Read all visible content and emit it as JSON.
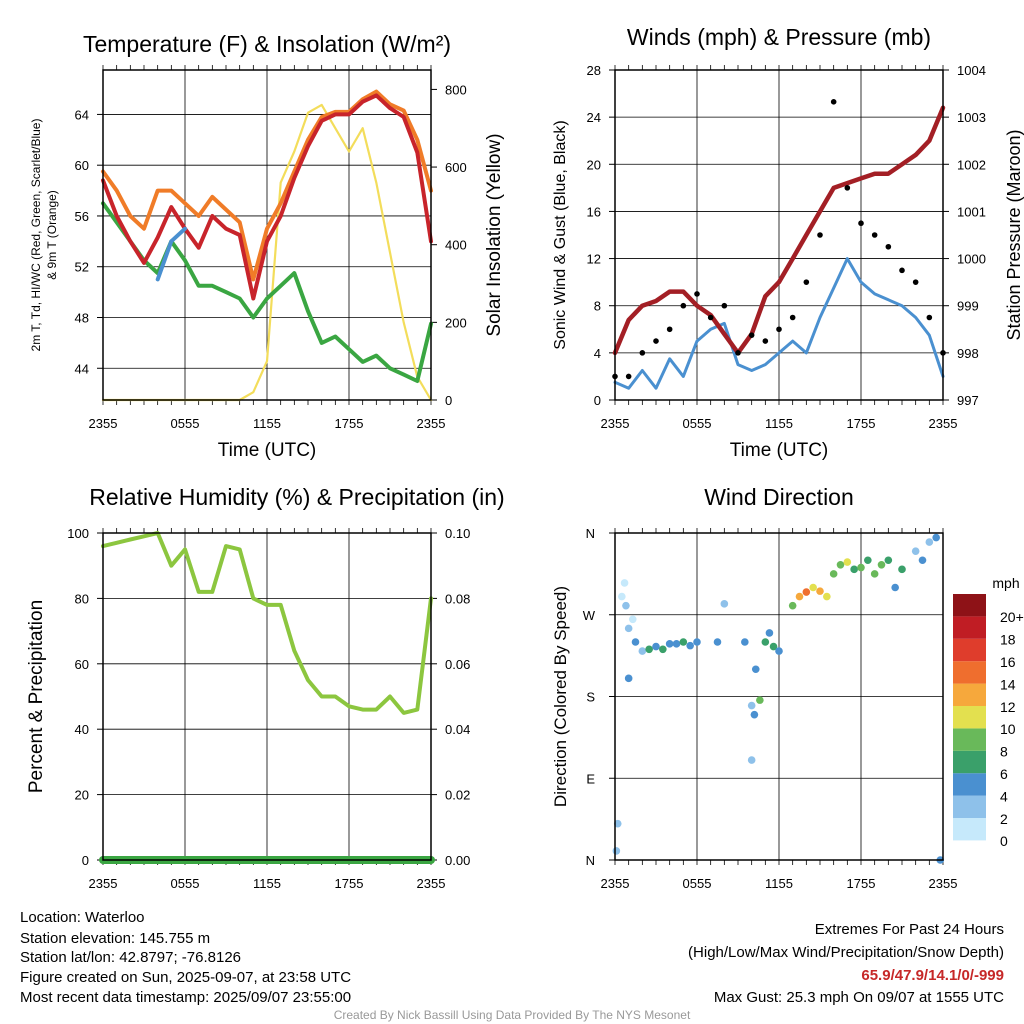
{
  "chart_data": [
    {
      "type": "line",
      "title": "Temperature (F) & Insolation (W/m²)",
      "xlabel": "Time (UTC)",
      "ylabel_left": "2m T, Td, HI/WC (Red, Green, Scarlet/Blue)",
      "ylabel_left_line2": "& 9m T (Orange)",
      "ylabel_right": "Solar Insolation (Yellow)",
      "x_ticks": [
        "2355",
        "0555",
        "1155",
        "1755",
        "2355"
      ],
      "ylim_left": [
        41.5,
        67.5
      ],
      "y_ticks_left": [
        44,
        48,
        52,
        56,
        60,
        64
      ],
      "ylim_right": [
        0,
        850
      ],
      "y_ticks_right": [
        0,
        200,
        400,
        600,
        800
      ],
      "grid": true,
      "x_hours": [
        0,
        1,
        2,
        3,
        4,
        5,
        6,
        7,
        8,
        9,
        10,
        11,
        12,
        13,
        14,
        15,
        16,
        17,
        18,
        19,
        20,
        21,
        22,
        23,
        24
      ],
      "series": [
        {
          "name": "2m T",
          "color": "#c8242b",
          "axis": "left",
          "values": [
            58.8,
            56.0,
            54.0,
            52.3,
            54.3,
            56.7,
            55.0,
            53.5,
            56.0,
            55.0,
            54.5,
            49.5,
            54.0,
            56.0,
            59.0,
            61.5,
            63.5,
            64.0,
            64.0,
            65.0,
            65.5,
            64.5,
            63.8,
            61.0,
            54.0
          ]
        },
        {
          "name": "9m T",
          "color": "#f07c28",
          "axis": "left",
          "values": [
            59.5,
            58.0,
            56.0,
            55.0,
            58.0,
            58.0,
            57.0,
            56.0,
            57.5,
            56.5,
            55.5,
            51.0,
            55.0,
            57.0,
            59.5,
            62.0,
            63.8,
            64.2,
            64.2,
            65.2,
            65.8,
            64.8,
            64.3,
            62.0,
            58.0
          ]
        },
        {
          "name": "HI/WC (Blue)",
          "color": "#4a90d0",
          "axis": "left",
          "x_start": 4,
          "x_end": 6,
          "values": [
            51.0,
            54.0,
            55.0
          ]
        },
        {
          "name": "Td",
          "color": "#3aa642",
          "axis": "left",
          "values": [
            57.0,
            55.5,
            54.0,
            52.5,
            51.5,
            54.0,
            52.5,
            50.5,
            50.5,
            50.0,
            49.5,
            48.0,
            49.5,
            50.5,
            51.5,
            48.5,
            46.0,
            46.5,
            45.5,
            44.5,
            45.0,
            44.0,
            43.5,
            43.0,
            47.5
          ]
        },
        {
          "name": "Solar Insolation",
          "color": "#f3dd5b",
          "axis": "right",
          "values": [
            0,
            0,
            0,
            0,
            0,
            0,
            0,
            0,
            0,
            0,
            0,
            20,
            100,
            560,
            640,
            740,
            760,
            700,
            640,
            700,
            560,
            380,
            200,
            60,
            0
          ]
        }
      ]
    },
    {
      "type": "line",
      "title": "Winds (mph) & Pressure (mb)",
      "xlabel": "Time (UTC)",
      "ylabel_left": "Sonic Wind & Gust (Blue, Black)",
      "ylabel_right": "Station Pressure (Maroon)",
      "x_ticks": [
        "2355",
        "0555",
        "1155",
        "1755",
        "2355"
      ],
      "ylim_left": [
        0,
        28
      ],
      "y_ticks_left": [
        0,
        4,
        8,
        12,
        16,
        20,
        24,
        28
      ],
      "ylim_right": [
        997,
        1004
      ],
      "y_ticks_right": [
        997,
        998,
        999,
        1000,
        1001,
        1002,
        1003,
        1004
      ],
      "grid": true,
      "x_hours": [
        0,
        1,
        2,
        3,
        4,
        5,
        6,
        7,
        8,
        9,
        10,
        11,
        12,
        13,
        14,
        15,
        16,
        17,
        18,
        19,
        20,
        21,
        22,
        23,
        24
      ],
      "series": [
        {
          "name": "Sonic Wind",
          "color": "#4a90d0",
          "axis": "left",
          "values": [
            1.5,
            1.0,
            2.5,
            1.0,
            3.5,
            2.0,
            5.0,
            6.0,
            6.5,
            3.0,
            2.5,
            3.0,
            4.0,
            5.0,
            4.0,
            7.0,
            9.5,
            12.0,
            10.0,
            9.0,
            8.5,
            8.0,
            7.0,
            5.5,
            2.0
          ]
        },
        {
          "name": "Gust",
          "color": "#000000",
          "axis": "left",
          "style": "points",
          "values": [
            2.0,
            2.0,
            4.0,
            5.0,
            6.0,
            8.0,
            9.0,
            7.0,
            8.0,
            4.0,
            5.5,
            5.0,
            6.0,
            7.0,
            10.0,
            14.0,
            25.3,
            18.0,
            15.0,
            14.0,
            13.0,
            11.0,
            10.0,
            7.0,
            4.0
          ]
        },
        {
          "name": "Station Pressure",
          "color": "#a31f25",
          "axis": "right",
          "values": [
            998.0,
            998.7,
            999.0,
            999.1,
            999.3,
            999.3,
            999.0,
            998.8,
            998.4,
            998.0,
            998.4,
            999.2,
            999.5,
            1000.0,
            1000.5,
            1001.0,
            1001.5,
            1001.6,
            1001.7,
            1001.8,
            1001.8,
            1002.0,
            1002.2,
            1002.5,
            1003.2
          ]
        }
      ]
    },
    {
      "type": "line",
      "title": "Relative Humidity (%) & Precipitation (in)",
      "ylabel_left": "Percent & Precipitation",
      "x_ticks": [
        "2355",
        "0555",
        "1155",
        "1755",
        "2355"
      ],
      "ylim_left": [
        0,
        100
      ],
      "y_ticks_left": [
        0,
        20,
        40,
        60,
        80,
        100
      ],
      "ylim_right": [
        0,
        0.1
      ],
      "y_ticks_right": [
        "0.00",
        "0.02",
        "0.04",
        "0.06",
        "0.08",
        "0.10"
      ],
      "grid": true,
      "x_hours": [
        0,
        1,
        2,
        3,
        4,
        5,
        6,
        7,
        8,
        9,
        10,
        11,
        12,
        13,
        14,
        15,
        16,
        17,
        18,
        19,
        20,
        21,
        22,
        23,
        24
      ],
      "series": [
        {
          "name": "Relative Humidity",
          "color": "#8cc63f",
          "axis": "left",
          "values": [
            96,
            97,
            98,
            99,
            100,
            90,
            95,
            82,
            82,
            96,
            95,
            80,
            78,
            78,
            64,
            55,
            50,
            50,
            47,
            46,
            46,
            50,
            45,
            46,
            80
          ]
        },
        {
          "name": "Precipitation",
          "color": "#3aa642",
          "axis": "right",
          "values": [
            0,
            0,
            0,
            0,
            0,
            0,
            0,
            0,
            0,
            0,
            0,
            0,
            0,
            0,
            0,
            0,
            0,
            0,
            0,
            0,
            0,
            0,
            0,
            0,
            0
          ]
        }
      ]
    },
    {
      "type": "scatter",
      "title": "Wind Direction",
      "ylabel_left": "Direction (Colored By Speed)",
      "x_ticks": [
        "2355",
        "0555",
        "1155",
        "1755",
        "2355"
      ],
      "y_ticks": [
        "N",
        "E",
        "S",
        "W",
        "N"
      ],
      "ylim": [
        0,
        360
      ],
      "grid": true,
      "legend_title": "mph",
      "legend_labels": [
        "0",
        "2",
        "4",
        "6",
        "8",
        "10",
        "12",
        "14",
        "16",
        "18",
        "20+"
      ],
      "legend_colors": [
        "#c6e9fb",
        "#8ec1ea",
        "#4a90d0",
        "#3aa06a",
        "#69b95a",
        "#e3e04f",
        "#f6a83c",
        "#ef6e2e",
        "#df3d2c",
        "#c01d24",
        "#8e1217"
      ],
      "points": [
        {
          "x": 0.1,
          "y": 10,
          "speed": 2
        },
        {
          "x": 0.2,
          "y": 40,
          "speed": 2
        },
        {
          "x": 0.5,
          "y": 290,
          "speed": 0
        },
        {
          "x": 0.7,
          "y": 305,
          "speed": 0
        },
        {
          "x": 0.8,
          "y": 280,
          "speed": 2
        },
        {
          "x": 1.0,
          "y": 255,
          "speed": 2
        },
        {
          "x": 1.0,
          "y": 200,
          "speed": 4
        },
        {
          "x": 1.3,
          "y": 265,
          "speed": 0
        },
        {
          "x": 1.5,
          "y": 240,
          "speed": 4
        },
        {
          "x": 2.0,
          "y": 230,
          "speed": 2
        },
        {
          "x": 2.5,
          "y": 232,
          "speed": 6
        },
        {
          "x": 3.0,
          "y": 235,
          "speed": 4
        },
        {
          "x": 3.5,
          "y": 232,
          "speed": 6
        },
        {
          "x": 4.0,
          "y": 238,
          "speed": 4
        },
        {
          "x": 4.5,
          "y": 238,
          "speed": 4
        },
        {
          "x": 5.0,
          "y": 240,
          "speed": 6
        },
        {
          "x": 5.5,
          "y": 236,
          "speed": 4
        },
        {
          "x": 6.0,
          "y": 240,
          "speed": 4
        },
        {
          "x": 7.5,
          "y": 240,
          "speed": 4
        },
        {
          "x": 8.0,
          "y": 282,
          "speed": 2
        },
        {
          "x": 9.5,
          "y": 240,
          "speed": 4
        },
        {
          "x": 10.0,
          "y": 170,
          "speed": 2
        },
        {
          "x": 10.2,
          "y": 160,
          "speed": 4
        },
        {
          "x": 10.0,
          "y": 110,
          "speed": 2
        },
        {
          "x": 10.3,
          "y": 210,
          "speed": 4
        },
        {
          "x": 10.6,
          "y": 176,
          "speed": 8
        },
        {
          "x": 11.0,
          "y": 240,
          "speed": 6
        },
        {
          "x": 11.3,
          "y": 250,
          "speed": 4
        },
        {
          "x": 11.6,
          "y": 235,
          "speed": 6
        },
        {
          "x": 12.0,
          "y": 230,
          "speed": 4
        },
        {
          "x": 13.0,
          "y": 280,
          "speed": 8
        },
        {
          "x": 13.5,
          "y": 290,
          "speed": 12
        },
        {
          "x": 14.0,
          "y": 295,
          "speed": 14
        },
        {
          "x": 14.5,
          "y": 300,
          "speed": 10
        },
        {
          "x": 15.0,
          "y": 296,
          "speed": 12
        },
        {
          "x": 15.5,
          "y": 290,
          "speed": 10
        },
        {
          "x": 16.0,
          "y": 315,
          "speed": 8
        },
        {
          "x": 16.5,
          "y": 325,
          "speed": 8
        },
        {
          "x": 17.0,
          "y": 328,
          "speed": 10
        },
        {
          "x": 17.5,
          "y": 320,
          "speed": 6
        },
        {
          "x": 18.0,
          "y": 322,
          "speed": 8
        },
        {
          "x": 18.5,
          "y": 330,
          "speed": 6
        },
        {
          "x": 19.0,
          "y": 315,
          "speed": 8
        },
        {
          "x": 19.5,
          "y": 325,
          "speed": 8
        },
        {
          "x": 20.0,
          "y": 330,
          "speed": 6
        },
        {
          "x": 20.5,
          "y": 300,
          "speed": 4
        },
        {
          "x": 21.0,
          "y": 320,
          "speed": 6
        },
        {
          "x": 22.0,
          "y": 340,
          "speed": 2
        },
        {
          "x": 22.5,
          "y": 330,
          "speed": 4
        },
        {
          "x": 23.0,
          "y": 350,
          "speed": 2
        },
        {
          "x": 23.5,
          "y": 355,
          "speed": 4
        },
        {
          "x": 23.8,
          "y": 0,
          "speed": 4
        }
      ]
    }
  ],
  "footer": {
    "location": "Location: Waterloo",
    "elevation": "Station elevation: 145.755 m",
    "latlon": "Station lat/lon: 42.8797; -76.8126",
    "created": "Figure created on Sun, 2025-09-07, at 23:58 UTC",
    "recent": "Most recent data timestamp: 2025/09/07 23:55:00",
    "extremes_title": "Extremes For Past 24 Hours",
    "extremes_sub": "(High/Low/Max Wind/Precipitation/Snow Depth)",
    "extremes_values": "65.9/47.9/14.1/0/-999",
    "max_gust": "Max Gust: 25.3 mph On 09/07 at 1555 UTC",
    "credit": "Created By Nick Bassill Using Data Provided By The NYS Mesonet"
  }
}
